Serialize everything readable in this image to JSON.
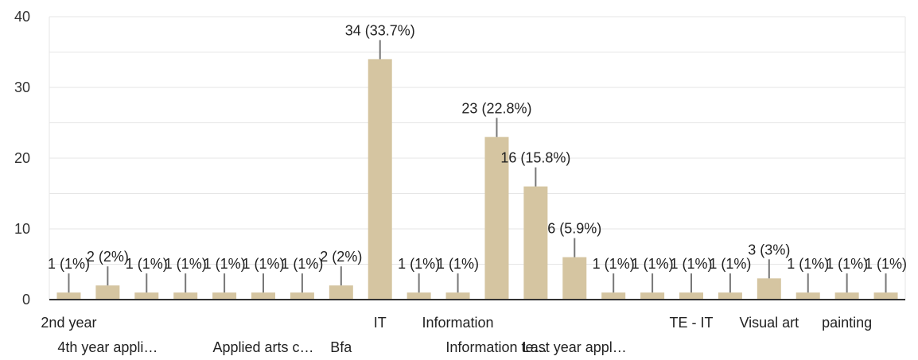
{
  "chart_data": {
    "type": "bar",
    "title": "",
    "xlabel": "",
    "ylabel": "",
    "ylim": [
      0,
      40
    ],
    "yticks": [
      0,
      10,
      20,
      30,
      40
    ],
    "grid": true,
    "bar_color": "#d5c5a1",
    "categories": [
      "2nd year",
      "4th year appli…",
      "",
      "",
      "",
      "Applied arts c…",
      "",
      "Bfa",
      "IT",
      "",
      "Information",
      "Information te…",
      "",
      "Last year appl…",
      "",
      "",
      "TE - IT",
      "",
      "Visual art",
      "",
      "painting",
      ""
    ],
    "values": [
      1,
      2,
      1,
      1,
      1,
      1,
      1,
      2,
      34,
      1,
      1,
      23,
      16,
      6,
      1,
      1,
      1,
      1,
      3,
      1,
      1,
      1
    ],
    "data_labels": [
      "1 (1%)",
      "2 (2%)",
      "1 (1%)",
      "1 (1%)",
      "1 (1%)",
      "1 (1%)",
      "1 (1%)",
      "2 (2%)",
      "34 (33.7%)",
      "1 (1%)",
      "1 (1%)",
      "23 (22.8%)",
      "16 (15.8%)",
      "6 (5.9%)",
      "1 (1%)",
      "1 (1%)",
      "1 (1%)",
      "1 (1%)",
      "3 (3%)",
      "1 (1%)",
      "1 (1%)",
      "1 (1%)"
    ]
  }
}
